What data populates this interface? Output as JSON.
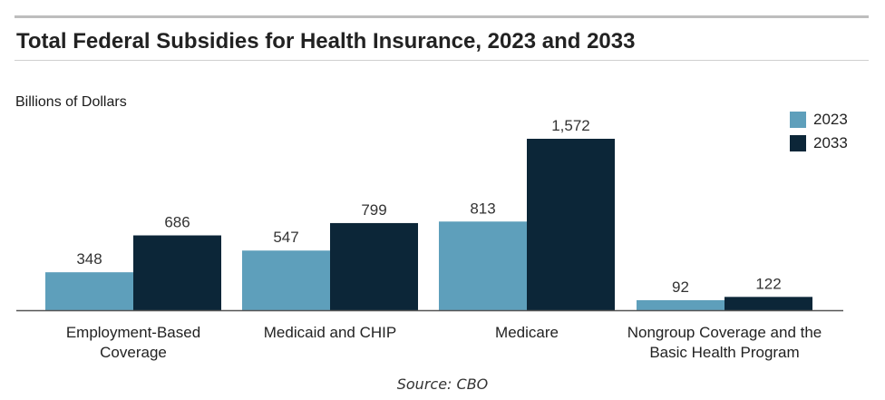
{
  "title": "Total Federal Subsidies for Health Insurance, 2023 and 2033",
  "source": "Source: CBO",
  "colors": {
    "series_2023": "#5e9fbb",
    "series_2033": "#0c2638",
    "axis": "#555555",
    "rules": "#bdbdbd"
  },
  "chart_data": {
    "type": "bar",
    "title": "Total Federal Subsidies for Health Insurance, 2023 and 2033",
    "ylabel": "Billions of Dollars",
    "xlabel": "",
    "categories": [
      [
        "Employment-Based",
        "Coverage"
      ],
      [
        "Medicaid and CHIP"
      ],
      [
        "Medicare"
      ],
      [
        "Nongroup Coverage and the",
        "Basic Health Program"
      ]
    ],
    "series": [
      {
        "name": "2023",
        "values": [
          348,
          547,
          813,
          92
        ],
        "labels": [
          "348",
          "547",
          "813",
          "92"
        ]
      },
      {
        "name": "2033",
        "values": [
          686,
          799,
          1572,
          122
        ],
        "labels": [
          "686",
          "799",
          "1,572",
          "122"
        ]
      }
    ],
    "ylim": [
      0,
      1572
    ],
    "grid": false,
    "legend_position": "top-right"
  }
}
